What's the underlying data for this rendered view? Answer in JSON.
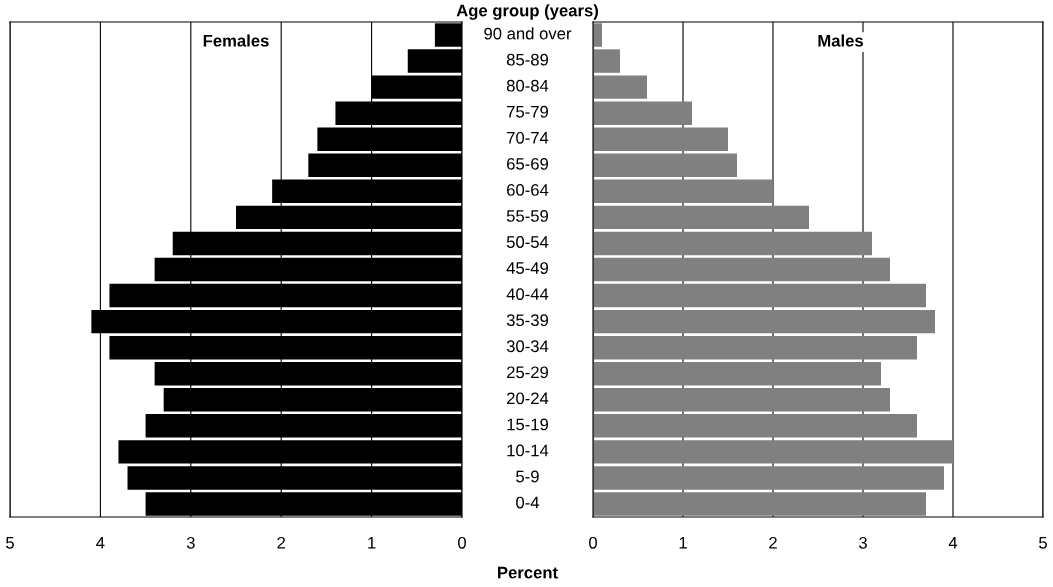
{
  "chart_data": [
    {
      "type": "bar",
      "orientation": "horizontal",
      "title": "Age group (years)",
      "xlabel": "Percent",
      "categories": [
        "90 and over",
        "85-89",
        "80-84",
        "75-79",
        "70-74",
        "65-69",
        "60-64",
        "55-59",
        "50-54",
        "45-49",
        "40-44",
        "35-39",
        "30-34",
        "25-29",
        "20-24",
        "15-19",
        "10-14",
        "5-9",
        "0-4"
      ],
      "series": [
        {
          "name": "Females",
          "color": "#000000",
          "values": [
            0.3,
            0.6,
            1.0,
            1.4,
            1.6,
            1.7,
            2.1,
            2.5,
            3.2,
            3.4,
            3.9,
            4.1,
            3.9,
            3.4,
            3.3,
            3.5,
            3.8,
            3.7,
            3.5
          ]
        }
      ],
      "xlim": [
        5,
        0
      ],
      "xticks": [
        5,
        4,
        3,
        2,
        1,
        0
      ],
      "grid": "x"
    },
    {
      "type": "bar",
      "orientation": "horizontal",
      "categories": [
        null,
        null,
        null,
        null,
        null,
        null,
        null,
        null,
        null,
        null,
        null,
        null,
        null,
        null,
        null,
        null,
        null,
        null,
        null
      ],
      "series": [
        {
          "name": "Males",
          "color": "#808080",
          "values": [
            0.1,
            0.3,
            0.6,
            1.1,
            1.5,
            1.6,
            2.0,
            2.4,
            3.1,
            3.3,
            3.7,
            3.8,
            3.6,
            3.2,
            3.3,
            3.6,
            4.0,
            3.9,
            3.7
          ]
        }
      ],
      "xlim": [
        0,
        5
      ],
      "xticks": [
        0,
        1,
        2,
        3,
        4,
        5
      ],
      "grid": "x",
      "tick_labels": "x"
    }
  ]
}
